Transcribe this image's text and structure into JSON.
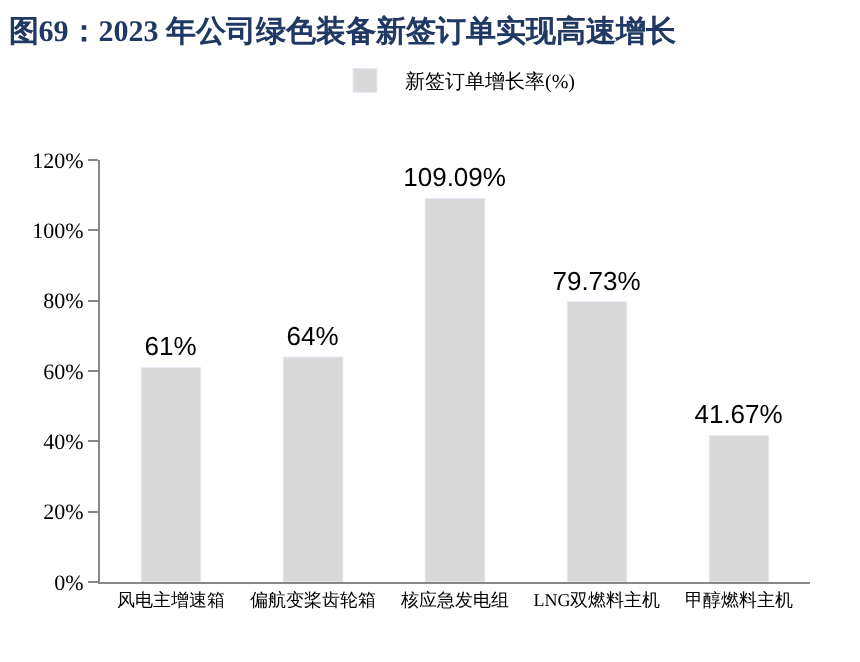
{
  "chart_data": {
    "type": "bar",
    "title": "图69：2023 年公司绿色装备新签订单实现高速增长",
    "categories": [
      "风电主增速箱",
      "偏航变桨齿轮箱",
      "核应急发电组",
      "LNG双燃料主机",
      "甲醇燃料主机"
    ],
    "series": [
      {
        "name": "新签订单增长率(%)",
        "color": "#d9d9d9",
        "values": [
          61,
          64,
          109.09,
          79.73,
          41.67
        ],
        "value_labels": [
          "61%",
          "64%",
          "109.09%",
          "79.73%",
          "41.67%"
        ]
      }
    ],
    "ylim": [
      0,
      120
    ],
    "yticks": [
      {
        "value": 0,
        "label": "0%"
      },
      {
        "value": 20,
        "label": "20%"
      },
      {
        "value": 40,
        "label": "40%"
      },
      {
        "value": 60,
        "label": "60%"
      },
      {
        "value": 80,
        "label": "80%"
      },
      {
        "value": 100,
        "label": "100%"
      },
      {
        "value": 120,
        "label": "120%"
      }
    ],
    "legend": "top"
  }
}
